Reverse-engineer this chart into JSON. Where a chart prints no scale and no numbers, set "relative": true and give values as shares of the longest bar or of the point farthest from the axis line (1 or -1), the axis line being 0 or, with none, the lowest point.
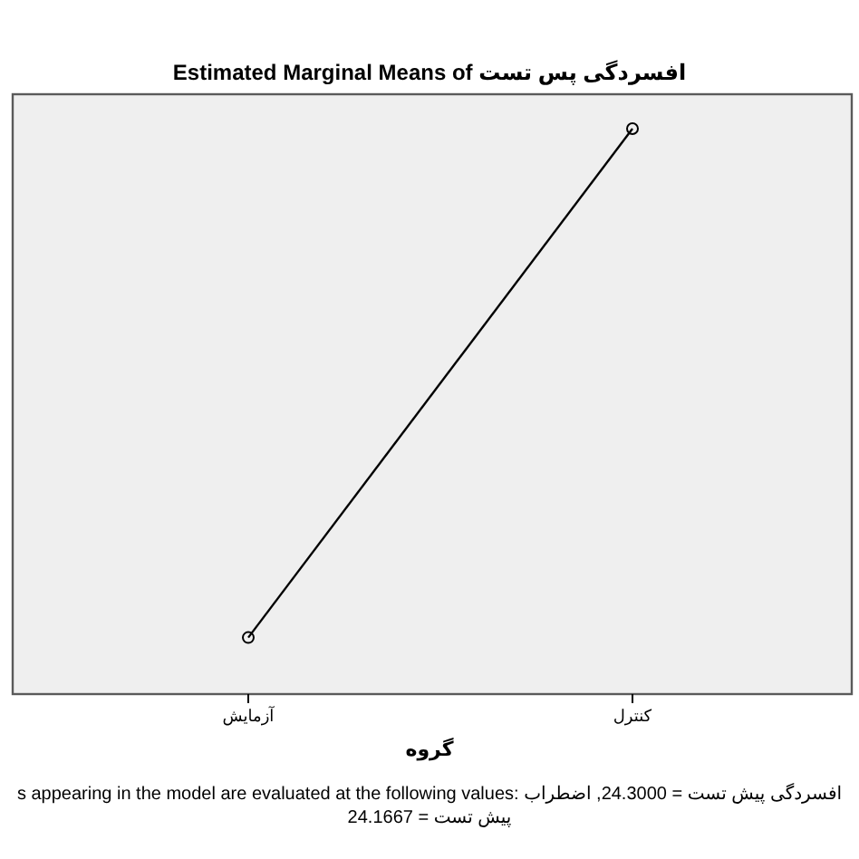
{
  "chart_data": {
    "type": "line",
    "title": "Estimated Marginal Means of افسردگی پس تست",
    "xlabel": "گروه",
    "categories": [
      "آزمایش",
      "کنترل"
    ],
    "values": [
      0.1,
      1
    ],
    "relative": true,
    "color": "#000000",
    "marker": "circle",
    "line_style": "solid",
    "annotations": [
      "s appearing in the model are evaluated at the following values: افسردگی پیش تست = 24.3000, اضطراب پیش تست = 24.1667"
    ]
  }
}
